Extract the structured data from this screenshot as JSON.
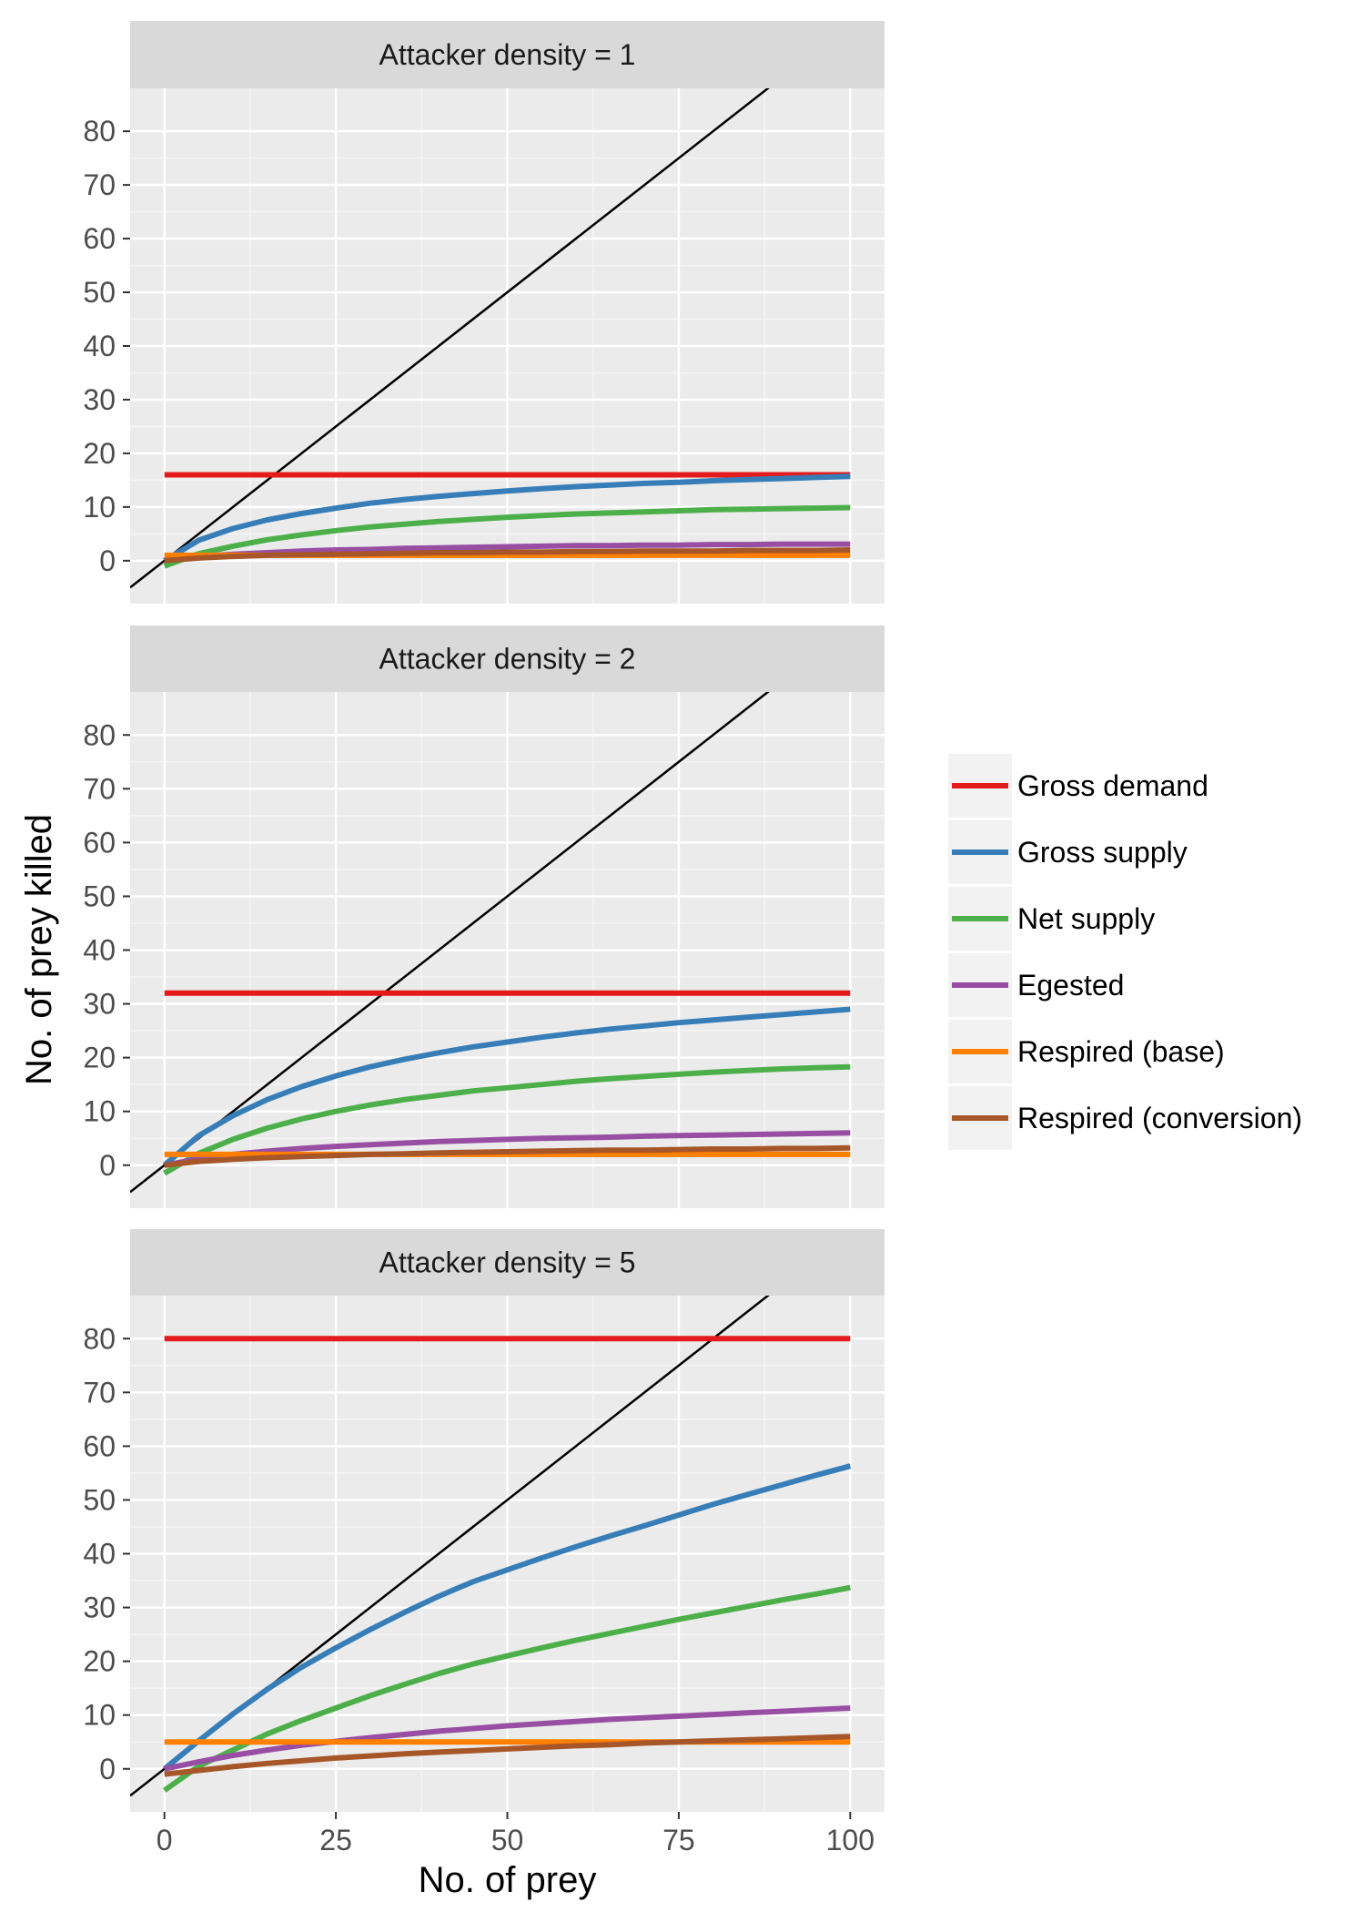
{
  "chart_data": {
    "type": "line",
    "xlabel": "No. of prey",
    "ylabel": "No. of prey killed",
    "xlim": [
      -5,
      105
    ],
    "ylim": [
      -8,
      88
    ],
    "x_ticks": [
      0,
      25,
      50,
      75,
      100
    ],
    "y_ticks": [
      0,
      10,
      20,
      30,
      40,
      50,
      60,
      70,
      80
    ],
    "x_tick_labels": [
      "0",
      "25",
      "50",
      "75",
      "100"
    ],
    "y_tick_labels": [
      "0",
      "10",
      "20",
      "30",
      "40",
      "50",
      "60",
      "70",
      "80"
    ],
    "grid": true,
    "legend_position": "right",
    "reference_line": {
      "slope": 1,
      "intercept": 0,
      "color": "#000000"
    },
    "x": [
      0,
      5,
      10,
      15,
      20,
      25,
      30,
      35,
      40,
      45,
      50,
      55,
      60,
      65,
      70,
      75,
      80,
      85,
      90,
      95,
      100
    ],
    "legend": [
      {
        "name": "Gross demand",
        "color": "#e41a1c"
      },
      {
        "name": "Gross supply",
        "color": "#377eb8"
      },
      {
        "name": "Net supply",
        "color": "#4daf4a"
      },
      {
        "name": "Egested",
        "color": "#984ea3"
      },
      {
        "name": "Respired (base)",
        "color": "#ff7f00"
      },
      {
        "name": "Respired (conversion)",
        "color": "#a65628"
      }
    ],
    "panels": [
      {
        "strip": "Attacker density = 1",
        "series": [
          {
            "name": "Gross demand",
            "values": [
              16,
              16,
              16,
              16,
              16,
              16,
              16,
              16,
              16,
              16,
              16,
              16,
              16,
              16,
              16,
              16,
              16,
              16,
              16,
              16,
              16
            ]
          },
          {
            "name": "Gross supply",
            "values": [
              0,
              3.8,
              6.0,
              7.6,
              8.8,
              9.8,
              10.7,
              11.4,
              12.0,
              12.5,
              13.0,
              13.4,
              13.8,
              14.1,
              14.4,
              14.6,
              14.9,
              15.1,
              15.3,
              15.5,
              15.7
            ]
          },
          {
            "name": "Net supply",
            "values": [
              -1,
              1.3,
              2.7,
              3.9,
              4.8,
              5.6,
              6.3,
              6.8,
              7.3,
              7.7,
              8.1,
              8.4,
              8.7,
              8.9,
              9.1,
              9.3,
              9.5,
              9.6,
              9.7,
              9.8,
              9.9
            ]
          },
          {
            "name": "Egested",
            "values": [
              0,
              0.8,
              1.2,
              1.5,
              1.8,
              2.0,
              2.1,
              2.3,
              2.4,
              2.5,
              2.6,
              2.7,
              2.8,
              2.8,
              2.9,
              2.9,
              3.0,
              3.0,
              3.1,
              3.1,
              3.1
            ]
          },
          {
            "name": "Respired (base)",
            "values": [
              1,
              1,
              1,
              1,
              1,
              1,
              1,
              1,
              1,
              1,
              1,
              1,
              1,
              1,
              1,
              1,
              1,
              1,
              1,
              1,
              1
            ]
          },
          {
            "name": "Respired (conversion)",
            "values": [
              0,
              0.5,
              0.8,
              1.0,
              1.1,
              1.2,
              1.3,
              1.4,
              1.5,
              1.5,
              1.6,
              1.6,
              1.7,
              1.7,
              1.8,
              1.8,
              1.8,
              1.9,
              1.9,
              1.9,
              2.0
            ]
          }
        ]
      },
      {
        "strip": "Attacker density = 2",
        "series": [
          {
            "name": "Gross demand",
            "values": [
              32,
              32,
              32,
              32,
              32,
              32,
              32,
              32,
              32,
              32,
              32,
              32,
              32,
              32,
              32,
              32,
              32,
              32,
              32,
              32,
              32
            ]
          },
          {
            "name": "Gross supply",
            "values": [
              0,
              5.5,
              9.2,
              12.2,
              14.6,
              16.6,
              18.3,
              19.7,
              20.9,
              22.0,
              22.9,
              23.8,
              24.6,
              25.3,
              25.9,
              26.5,
              27.0,
              27.5,
              28.0,
              28.5,
              29.0
            ]
          },
          {
            "name": "Net supply",
            "values": [
              -1.5,
              2.2,
              4.8,
              6.9,
              8.6,
              10.0,
              11.2,
              12.2,
              13.0,
              13.8,
              14.4,
              15.0,
              15.6,
              16.1,
              16.5,
              16.9,
              17.3,
              17.6,
              17.9,
              18.1,
              18.3
            ]
          },
          {
            "name": "Egested",
            "values": [
              0,
              1.2,
              2.0,
              2.6,
              3.1,
              3.5,
              3.8,
              4.1,
              4.4,
              4.6,
              4.8,
              5.0,
              5.1,
              5.2,
              5.4,
              5.5,
              5.6,
              5.7,
              5.8,
              5.9,
              6.0
            ]
          },
          {
            "name": "Respired (base)",
            "values": [
              2,
              2,
              2,
              2,
              2,
              2,
              2,
              2,
              2,
              2,
              2,
              2,
              2,
              2,
              2,
              2,
              2,
              2,
              2,
              2,
              2
            ]
          },
          {
            "name": "Respired (conversion)",
            "values": [
              0,
              0.7,
              1.1,
              1.4,
              1.6,
              1.8,
              2.0,
              2.1,
              2.3,
              2.4,
              2.5,
              2.6,
              2.7,
              2.8,
              2.8,
              2.9,
              3.0,
              3.0,
              3.1,
              3.1,
              3.2
            ]
          }
        ]
      },
      {
        "strip": "Attacker density = 5",
        "series": [
          {
            "name": "Gross demand",
            "values": [
              80,
              80,
              80,
              80,
              80,
              80,
              80,
              80,
              80,
              80,
              80,
              80,
              80,
              80,
              80,
              80,
              80,
              80,
              80,
              80,
              80
            ]
          },
          {
            "name": "Gross supply",
            "values": [
              0,
              5.2,
              10.2,
              14.8,
              18.9,
              22.5,
              25.9,
              29.1,
              32.1,
              34.8,
              37.0,
              39.2,
              41.3,
              43.3,
              45.2,
              47.2,
              49.2,
              51.0,
              52.8,
              54.6,
              56.3
            ]
          },
          {
            "name": "Net supply",
            "values": [
              -4,
              0.5,
              3.5,
              6.5,
              9.0,
              11.3,
              13.6,
              15.7,
              17.7,
              19.5,
              21.0,
              22.5,
              23.9,
              25.2,
              26.5,
              27.8,
              29.0,
              30.2,
              31.4,
              32.5,
              33.7
            ]
          },
          {
            "name": "Egested",
            "values": [
              0,
              1.3,
              2.5,
              3.5,
              4.4,
              5.1,
              5.8,
              6.4,
              7.0,
              7.5,
              8.0,
              8.4,
              8.8,
              9.2,
              9.5,
              9.8,
              10.1,
              10.4,
              10.7,
              11.0,
              11.3
            ]
          },
          {
            "name": "Respired (base)",
            "values": [
              5,
              5,
              5,
              5,
              5,
              5,
              5,
              5,
              5,
              5,
              5,
              5,
              5,
              5,
              5,
              5,
              5,
              5,
              5,
              5,
              5
            ]
          },
          {
            "name": "Respired (conversion)",
            "values": [
              -1,
              -0.3,
              0.4,
              1.0,
              1.5,
              2.0,
              2.4,
              2.8,
              3.1,
              3.4,
              3.7,
              4.0,
              4.3,
              4.5,
              4.8,
              5.0,
              5.2,
              5.4,
              5.6,
              5.8,
              6.0
            ]
          }
        ]
      }
    ]
  }
}
